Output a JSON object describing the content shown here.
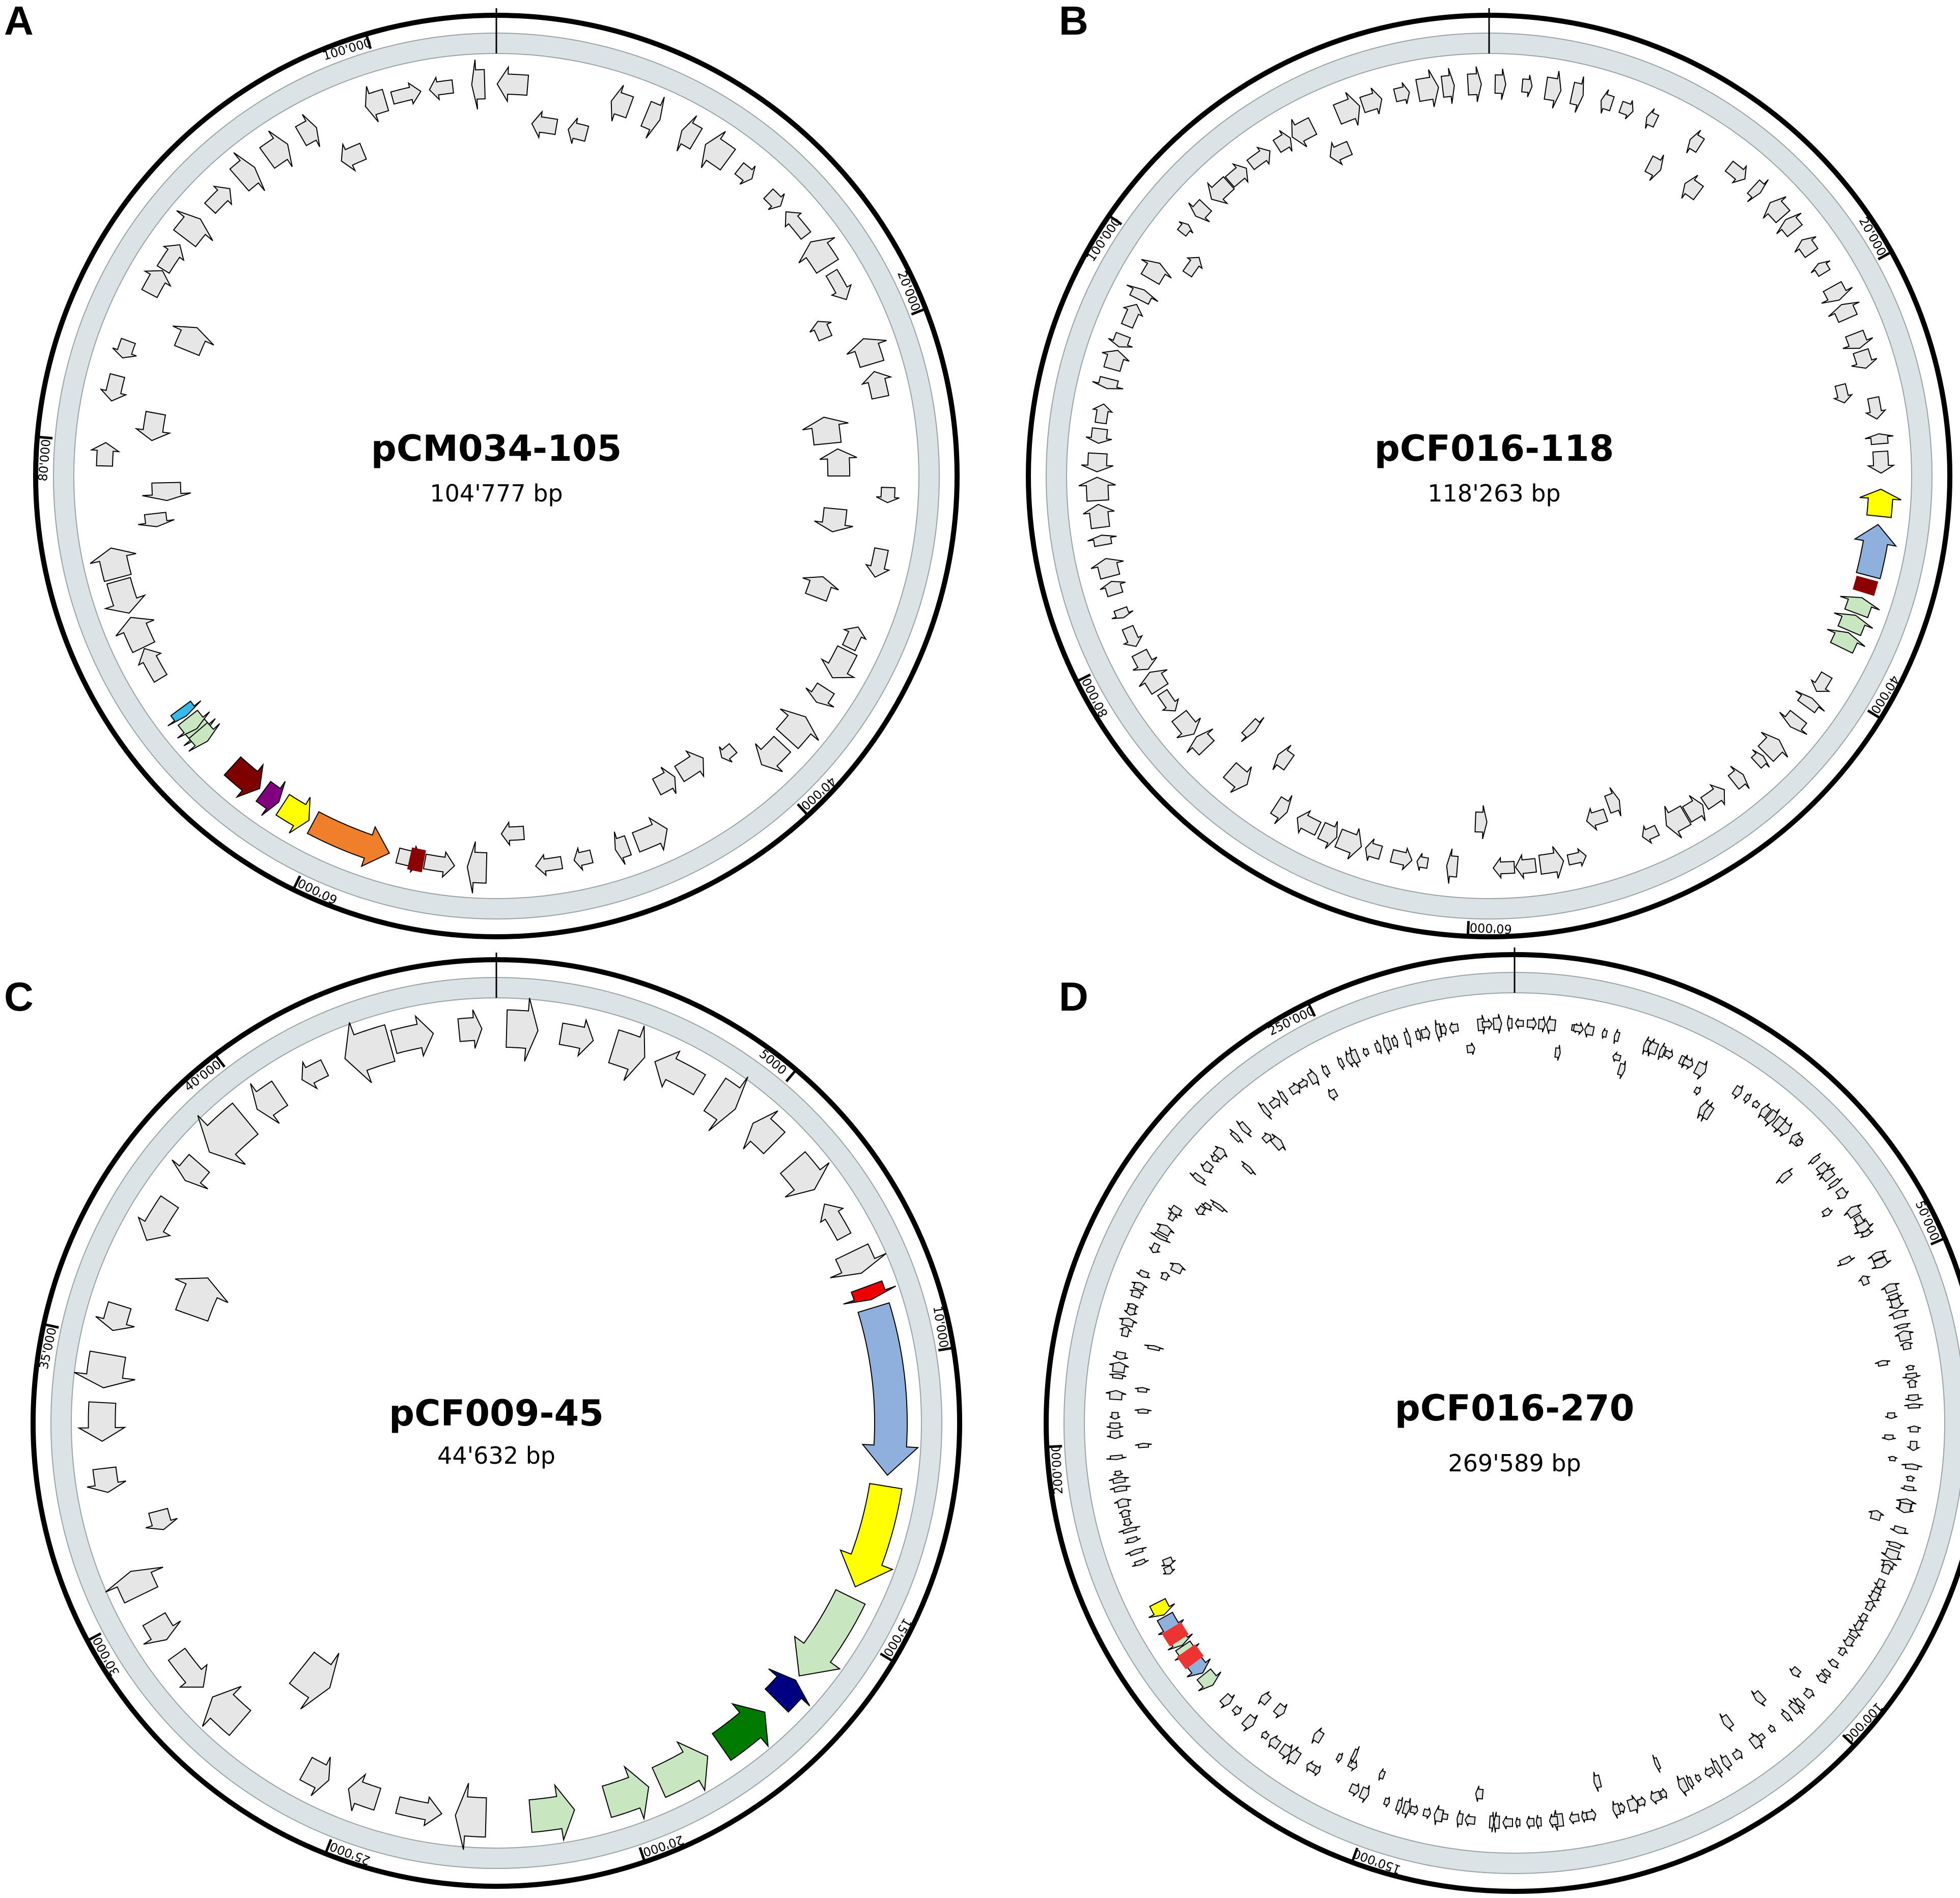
{
  "panels": [
    {
      "letter": "A",
      "name": "pCM034-105",
      "size_label": "104'777 bp",
      "length_bp": 104777,
      "ticks": [
        {
          "pos": 20000,
          "label": "20'000"
        },
        {
          "pos": 40000,
          "label": "40'000"
        },
        {
          "pos": 60000,
          "label": "60'000"
        },
        {
          "pos": 80000,
          "label": "80'000"
        },
        {
          "pos": 100000,
          "label": "100'000"
        }
      ],
      "highlighted_genes": [
        {
          "start": 57000,
          "end": 60500,
          "strand": -1,
          "color": "#f07f2c"
        },
        {
          "start": 60700,
          "end": 62000,
          "strand": -1,
          "color": "#ffff00"
        },
        {
          "start": 62200,
          "end": 63000,
          "strand": -1,
          "color": "#800080"
        },
        {
          "start": 63200,
          "end": 64700,
          "strand": -1,
          "color": "#7f0000"
        },
        {
          "start": 66500,
          "end": 67100,
          "strand": -1,
          "color": "#c8e6c0"
        },
        {
          "start": 66200,
          "end": 66800,
          "strand": -1,
          "color": "#c8e6c0",
          "lane": 0
        },
        {
          "start": 66900,
          "end": 67500,
          "strand": -1,
          "color": "#c8e6c0",
          "lane": 0
        },
        {
          "start": 67600,
          "end": 68000,
          "strand": -1,
          "color": "#33bbee",
          "lane": 0
        }
      ],
      "transposon_marks": [
        {
          "pos": 55800,
          "color": "#8b0000"
        }
      ]
    },
    {
      "letter": "B",
      "name": "pCF016-118",
      "size_label": "118'263 bp",
      "length_bp": 118263,
      "ticks": [
        {
          "pos": 20000,
          "label": "20'000"
        },
        {
          "pos": 40000,
          "label": "40'000"
        },
        {
          "pos": 60000,
          "label": "60'000"
        },
        {
          "pos": 80000,
          "label": "80'000"
        },
        {
          "pos": 100000,
          "label": "100'000"
        }
      ],
      "highlighted_genes": [
        {
          "start": 30200,
          "end": 31500,
          "strand": -1,
          "color": "#ffff00"
        },
        {
          "start": 31900,
          "end": 34400,
          "strand": -1,
          "color": "#8fb0dc"
        },
        {
          "start": 35500,
          "end": 36300,
          "strand": -1,
          "color": "#c8e6c0"
        },
        {
          "start": 36400,
          "end": 37200,
          "strand": -1,
          "color": "#c8e6c0"
        },
        {
          "start": 37300,
          "end": 38100,
          "strand": -1,
          "color": "#c8e6c0"
        }
      ],
      "transposon_marks": [
        {
          "pos": 34900,
          "color": "#8b0000"
        }
      ]
    },
    {
      "letter": "C",
      "name": "pCF009-45",
      "size_label": "44'632 bp",
      "length_bp": 44632,
      "ticks": [
        {
          "pos": 5000,
          "label": "5000"
        },
        {
          "pos": 10000,
          "label": "10'000"
        },
        {
          "pos": 15000,
          "label": "15'000"
        },
        {
          "pos": 20000,
          "label": "20'000"
        },
        {
          "pos": 25000,
          "label": "25'000"
        },
        {
          "pos": 30000,
          "label": "30'000"
        },
        {
          "pos": 35000,
          "label": "35'000"
        },
        {
          "pos": 40000,
          "label": "40'000"
        }
      ],
      "highlighted_genes": [
        {
          "start": 8650,
          "end": 8900,
          "strand": 1,
          "color": "#ee0000"
        },
        {
          "start": 9050,
          "end": 12100,
          "strand": 1,
          "color": "#8fb0dc"
        },
        {
          "start": 12300,
          "end": 14200,
          "strand": 1,
          "color": "#ffff00"
        },
        {
          "start": 14400,
          "end": 16100,
          "strand": 1,
          "color": "#c8e6c0"
        },
        {
          "start": 16200,
          "end": 16700,
          "strand": -1,
          "color": "#000080"
        },
        {
          "start": 17000,
          "end": 18000,
          "strand": -1,
          "color": "#007a00"
        },
        {
          "start": 18300,
          "end": 19300,
          "strand": -1,
          "color": "#c8e6c0"
        },
        {
          "start": 19500,
          "end": 20300,
          "strand": -1,
          "color": "#c8e6c0"
        },
        {
          "start": 20900,
          "end": 21700,
          "strand": -1,
          "color": "#c8e6c0"
        }
      ],
      "transposon_marks": []
    },
    {
      "letter": "D",
      "name": "pCF016-270",
      "size_label": "269'589 bp",
      "length_bp": 269589,
      "ticks": [
        {
          "pos": 50000,
          "label": "50'000"
        },
        {
          "pos": 100000,
          "label": "100'000"
        },
        {
          "pos": 150000,
          "label": "150'000"
        },
        {
          "pos": 200000,
          "label": "200'000"
        },
        {
          "pos": 250000,
          "label": "250'000"
        }
      ],
      "highlighted_genes": [
        {
          "start": 171500,
          "end": 173000,
          "strand": -1,
          "color": "#c8e6c0"
        },
        {
          "start": 173200,
          "end": 175200,
          "strand": -1,
          "color": "#8fb0dc"
        },
        {
          "start": 175600,
          "end": 176800,
          "strand": -1,
          "color": "#c8e6c0"
        },
        {
          "start": 176900,
          "end": 178100,
          "strand": -1,
          "color": "#c8e6c0"
        },
        {
          "start": 178500,
          "end": 180500,
          "strand": -1,
          "color": "#8fb0dc"
        },
        {
          "start": 180700,
          "end": 182200,
          "strand": -1,
          "color": "#ffff00"
        }
      ],
      "transposon_marks": [
        {
          "pos": 175400,
          "color": "#ee3333"
        },
        {
          "pos": 178300,
          "color": "#ee3333"
        }
      ]
    }
  ],
  "colors": {
    "backbone_ring": "#dbe3e6",
    "gene_default": "#e6e6e6",
    "outline": "#000000"
  }
}
